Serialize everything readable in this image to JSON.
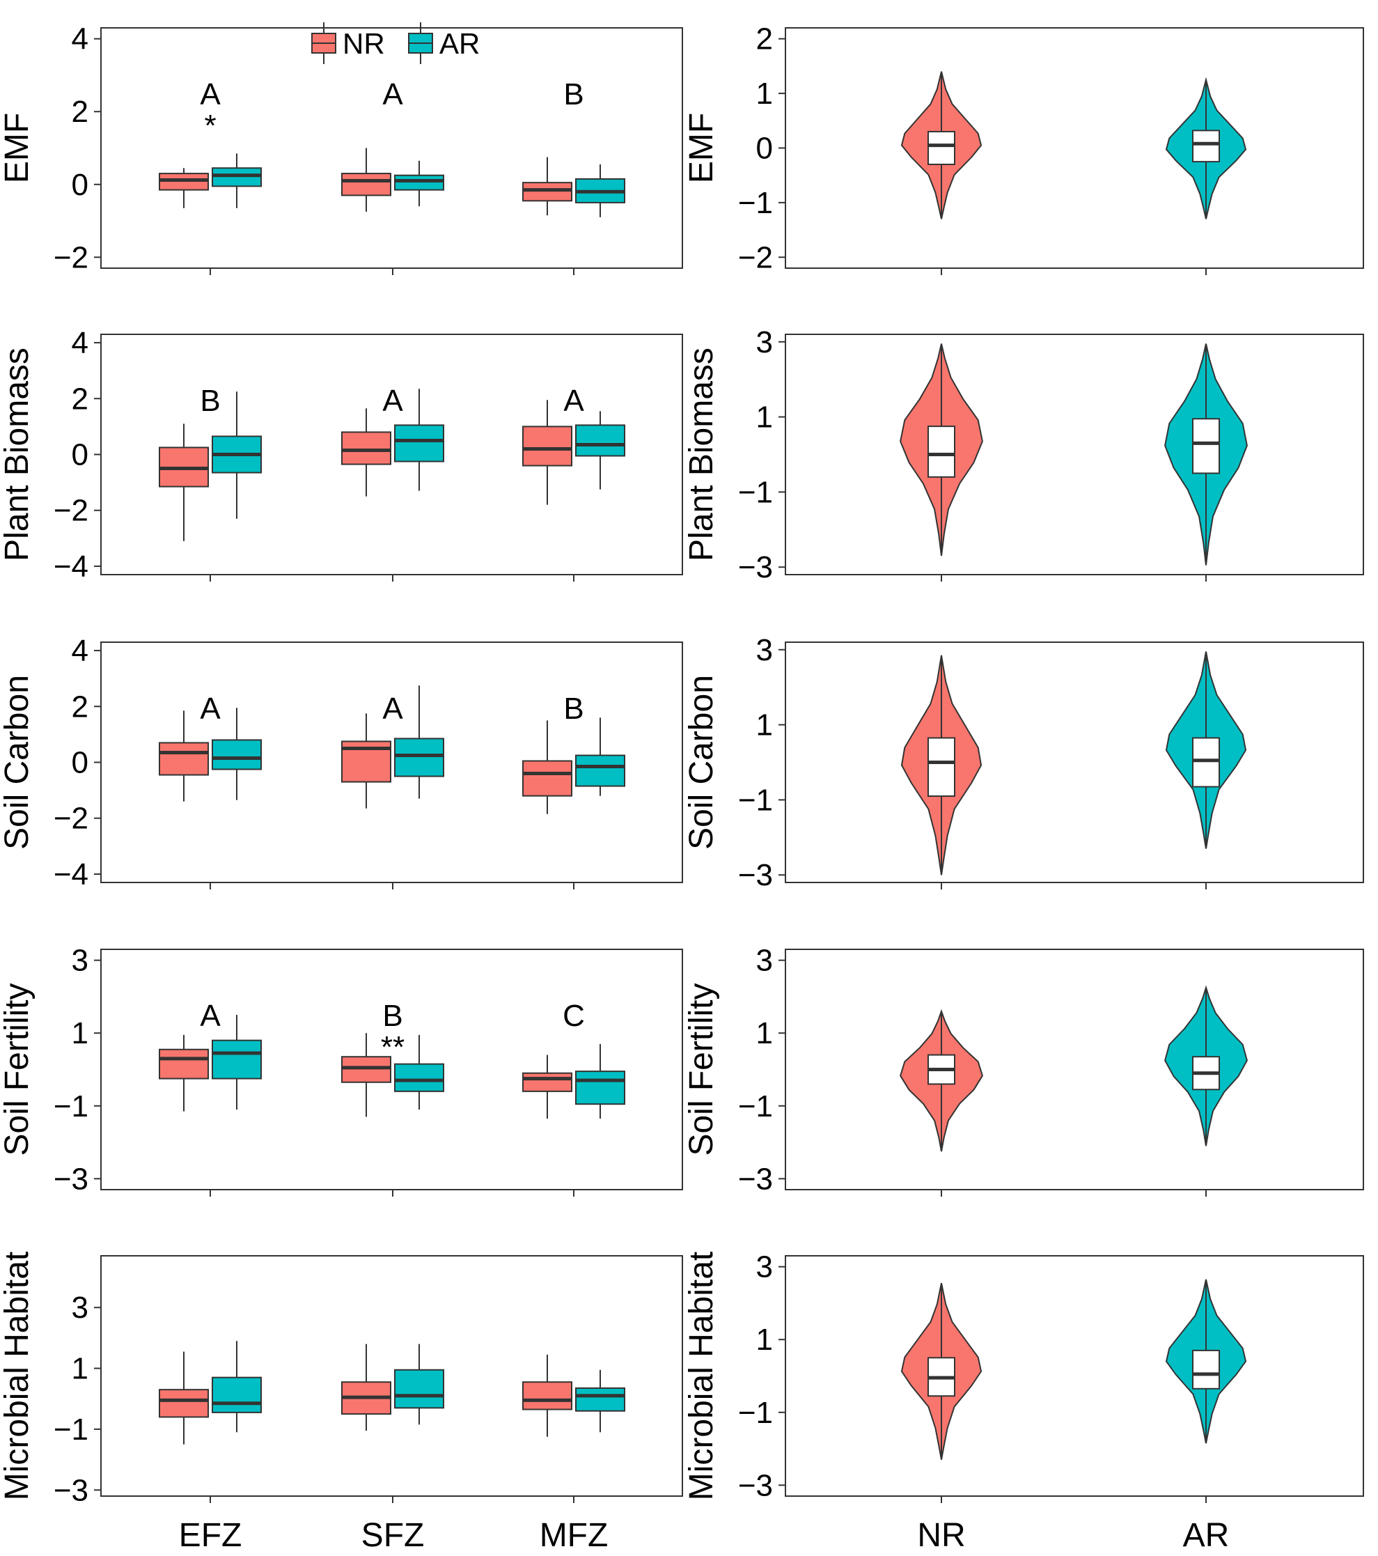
{
  "colors": {
    "NR": "#F8766D",
    "AR": "#00BFC4"
  },
  "legend": {
    "items": [
      "NR",
      "AR"
    ]
  },
  "chart_data": [
    {
      "type": "box",
      "panel": "left",
      "ylabel": "EMF",
      "ylim": [
        -2.3,
        4.3
      ],
      "yticks": [
        -2,
        0,
        2,
        4
      ],
      "categories": [
        "EFZ",
        "SFZ",
        "MFZ"
      ],
      "letters": [
        "A",
        "A",
        "B"
      ],
      "stars": [
        "*",
        "",
        ""
      ],
      "series": [
        {
          "name": "NR",
          "boxes": [
            [
              -0.65,
              -0.15,
              0.12,
              0.3,
              0.45
            ],
            [
              -0.75,
              -0.3,
              0.1,
              0.3,
              1.0
            ],
            [
              -0.85,
              -0.45,
              -0.15,
              0.05,
              0.75
            ]
          ]
        },
        {
          "name": "AR",
          "boxes": [
            [
              -0.65,
              -0.05,
              0.25,
              0.45,
              0.85
            ],
            [
              -0.6,
              -0.15,
              0.1,
              0.25,
              0.65
            ],
            [
              -0.9,
              -0.5,
              -0.2,
              0.15,
              0.55
            ]
          ]
        }
      ]
    },
    {
      "type": "violin",
      "panel": "right",
      "ylabel": "EMF",
      "ylim": [
        -2.2,
        2.2
      ],
      "yticks": [
        -2,
        -1,
        0,
        1,
        2
      ],
      "categories": [
        "NR",
        "AR"
      ],
      "series": [
        {
          "name": "NR",
          "box": [
            -0.3,
            0.05,
            0.3
          ],
          "violin_range": [
            -1.3,
            1.4
          ]
        },
        {
          "name": "AR",
          "box": [
            -0.25,
            0.08,
            0.32
          ],
          "violin_range": [
            -1.3,
            1.25
          ]
        }
      ]
    },
    {
      "type": "box",
      "panel": "left",
      "ylabel": "Plant Biomass",
      "ylim": [
        -4.3,
        4.3
      ],
      "yticks": [
        -4,
        -2,
        0,
        2,
        4
      ],
      "categories": [
        "EFZ",
        "SFZ",
        "MFZ"
      ],
      "letters": [
        "B",
        "A",
        "A"
      ],
      "stars": [
        "",
        "",
        ""
      ],
      "series": [
        {
          "name": "NR",
          "boxes": [
            [
              -3.1,
              -1.15,
              -0.5,
              0.25,
              1.1
            ],
            [
              -1.5,
              -0.35,
              0.15,
              0.8,
              1.65
            ],
            [
              -1.8,
              -0.4,
              0.2,
              1.0,
              1.95
            ]
          ]
        },
        {
          "name": "AR",
          "boxes": [
            [
              -2.3,
              -0.65,
              0.0,
              0.65,
              2.25
            ],
            [
              -1.3,
              -0.25,
              0.5,
              1.05,
              2.35
            ],
            [
              -1.25,
              -0.05,
              0.35,
              1.05,
              1.55
            ]
          ]
        }
      ]
    },
    {
      "type": "violin",
      "panel": "right",
      "ylabel": "Plant Biomass",
      "ylim": [
        -3.2,
        3.2
      ],
      "yticks": [
        -3,
        -1,
        1,
        3
      ],
      "categories": [
        "NR",
        "AR"
      ],
      "series": [
        {
          "name": "NR",
          "box": [
            -0.6,
            0.0,
            0.75
          ],
          "violin_range": [
            -2.7,
            2.95
          ]
        },
        {
          "name": "AR",
          "box": [
            -0.5,
            0.3,
            0.95
          ],
          "violin_range": [
            -2.95,
            2.95
          ]
        }
      ]
    },
    {
      "type": "box",
      "panel": "left",
      "ylabel": "Soil Carbon",
      "ylim": [
        -4.3,
        4.3
      ],
      "yticks": [
        -4,
        -2,
        0,
        2,
        4
      ],
      "categories": [
        "EFZ",
        "SFZ",
        "MFZ"
      ],
      "letters": [
        "A",
        "A",
        "B"
      ],
      "stars": [
        "",
        "",
        ""
      ],
      "series": [
        {
          "name": "NR",
          "boxes": [
            [
              -1.4,
              -0.45,
              0.35,
              0.7,
              1.85
            ],
            [
              -1.65,
              -0.7,
              0.5,
              0.75,
              1.75
            ],
            [
              -1.85,
              -1.2,
              -0.4,
              0.05,
              1.5
            ]
          ]
        },
        {
          "name": "AR",
          "boxes": [
            [
              -1.35,
              -0.25,
              0.15,
              0.8,
              1.95
            ],
            [
              -1.3,
              -0.5,
              0.25,
              0.85,
              2.75
            ],
            [
              -1.2,
              -0.85,
              -0.15,
              0.25,
              1.6
            ]
          ]
        }
      ]
    },
    {
      "type": "violin",
      "panel": "right",
      "ylabel": "Soil Carbon",
      "ylim": [
        -3.2,
        3.2
      ],
      "yticks": [
        -3,
        -1,
        1,
        3
      ],
      "categories": [
        "NR",
        "AR"
      ],
      "series": [
        {
          "name": "NR",
          "box": [
            -0.9,
            0.0,
            0.65
          ],
          "violin_range": [
            -3.0,
            2.85
          ]
        },
        {
          "name": "AR",
          "box": [
            -0.65,
            0.05,
            0.65
          ],
          "violin_range": [
            -2.3,
            2.95
          ]
        }
      ]
    },
    {
      "type": "box",
      "panel": "left",
      "ylabel": "Soil Fertility",
      "ylim": [
        -3.3,
        3.3
      ],
      "yticks": [
        -3,
        -1,
        1,
        3
      ],
      "categories": [
        "EFZ",
        "SFZ",
        "MFZ"
      ],
      "letters": [
        "A",
        "B",
        "C"
      ],
      "stars": [
        "",
        "**",
        ""
      ],
      "series": [
        {
          "name": "NR",
          "boxes": [
            [
              -1.15,
              -0.25,
              0.3,
              0.55,
              0.95
            ],
            [
              -1.3,
              -0.35,
              0.05,
              0.35,
              1.0
            ],
            [
              -1.35,
              -0.6,
              -0.25,
              -0.1,
              0.4
            ]
          ]
        },
        {
          "name": "AR",
          "boxes": [
            [
              -1.1,
              -0.25,
              0.45,
              0.8,
              1.5
            ],
            [
              -1.1,
              -0.6,
              -0.3,
              0.15,
              0.95
            ],
            [
              -1.35,
              -0.95,
              -0.3,
              -0.05,
              0.7
            ]
          ]
        }
      ]
    },
    {
      "type": "violin",
      "panel": "right",
      "ylabel": "Soil Fertility",
      "ylim": [
        -3.3,
        3.3
      ],
      "yticks": [
        -3,
        -1,
        1,
        3
      ],
      "categories": [
        "NR",
        "AR"
      ],
      "series": [
        {
          "name": "NR",
          "box": [
            -0.4,
            0.0,
            0.4
          ],
          "violin_range": [
            -2.25,
            1.6
          ]
        },
        {
          "name": "AR",
          "box": [
            -0.55,
            -0.1,
            0.35
          ],
          "violin_range": [
            -2.1,
            2.25
          ]
        }
      ]
    },
    {
      "type": "box",
      "panel": "left",
      "ylabel": "Microbial Habitat",
      "ylim": [
        -3.2,
        4.7
      ],
      "yticks": [
        -3,
        -1,
        1,
        3
      ],
      "categories": [
        "EFZ",
        "SFZ",
        "MFZ"
      ],
      "letters": [
        "",
        "",
        ""
      ],
      "stars": [
        "",
        "",
        ""
      ],
      "series": [
        {
          "name": "NR",
          "boxes": [
            [
              -1.5,
              -0.6,
              -0.05,
              0.3,
              1.55
            ],
            [
              -1.05,
              -0.5,
              0.05,
              0.55,
              1.8
            ],
            [
              -1.25,
              -0.35,
              -0.05,
              0.55,
              1.45
            ]
          ]
        },
        {
          "name": "AR",
          "boxes": [
            [
              -1.1,
              -0.45,
              -0.15,
              0.7,
              1.9
            ],
            [
              -0.85,
              -0.3,
              0.1,
              0.95,
              1.8
            ],
            [
              -1.1,
              -0.4,
              0.1,
              0.35,
              0.95
            ]
          ]
        }
      ]
    },
    {
      "type": "violin",
      "panel": "right",
      "ylabel": "Microbial Habitat",
      "ylim": [
        -3.3,
        3.3
      ],
      "yticks": [
        -3,
        -1,
        1,
        3
      ],
      "categories": [
        "NR",
        "AR"
      ],
      "series": [
        {
          "name": "NR",
          "box": [
            -0.55,
            -0.05,
            0.5
          ],
          "violin_range": [
            -2.3,
            2.55
          ]
        },
        {
          "name": "AR",
          "box": [
            -0.35,
            0.05,
            0.7
          ],
          "violin_range": [
            -1.85,
            2.65
          ]
        }
      ]
    }
  ]
}
